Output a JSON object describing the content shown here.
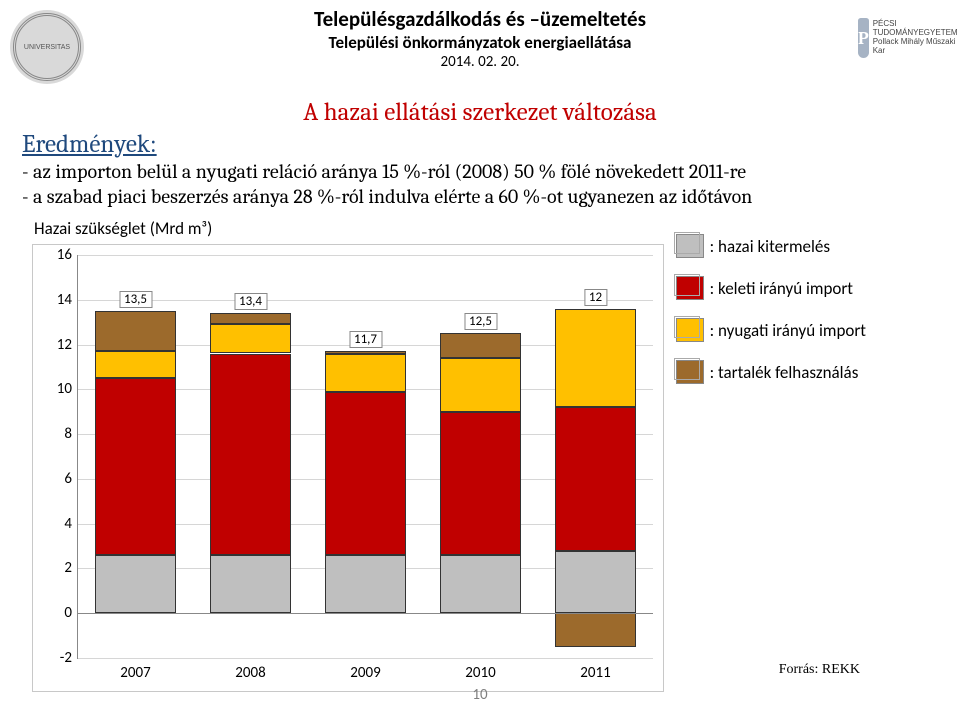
{
  "header": {
    "line1": "Településgazdálkodás és –üzemeltetés",
    "line2": "Települési önkormányzatok energiaellátása",
    "line3": "2014. 02. 20.",
    "logo_left_text": "UNIVERSITAS",
    "logo_right_shield": "P",
    "logo_right_text": "PÉCSI TUDOMÁNYEGYETEM\nPollack Mihály Műszaki Kar"
  },
  "title": "A hazai ellátási szerkezet változása",
  "section_label": "Eredmények:",
  "bullets": {
    "b1": "- az importon belül a nyugati reláció aránya 15 %-ról (2008) 50 % fölé növekedett 2011-re",
    "b2": "- a szabad piaci beszerzés aránya 28 %-ról indulva elérte a 60 %-ot ugyanezen az időtávon"
  },
  "chart_caption": "Hazai szükséglet (Mrd m³)",
  "legend": {
    "items": [
      {
        "color": "#bfbfbf",
        "label": ": hazai kitermelés"
      },
      {
        "color": "#c00000",
        "label": ": keleti irányú import"
      },
      {
        "color": "#ffc000",
        "label": ": nyugati irányú import"
      },
      {
        "color": "#9c6a2c",
        "label": ": tartalék felhasználás"
      }
    ]
  },
  "chart": {
    "type": "stacked-bar",
    "ylim": [
      -2,
      16
    ],
    "ytick_step": 2,
    "years": [
      "2007",
      "2008",
      "2009",
      "2010",
      "2011"
    ],
    "totals": [
      "13,5",
      "13,4",
      "11,7",
      "12,5",
      "12"
    ],
    "colors": {
      "hazai": "#bfbfbf",
      "keleti": "#c00000",
      "nyugati": "#ffc000",
      "tartalek": "#9c6a2c"
    },
    "series": [
      {
        "hazai": 2.6,
        "keleti": 7.9,
        "nyugati": 1.2,
        "tartalek": 1.8,
        "neg_tartalek": 0
      },
      {
        "hazai": 2.6,
        "keleti": 9.0,
        "nyugati": 1.3,
        "tartalek": 0.5,
        "neg_tartalek": 0
      },
      {
        "hazai": 2.6,
        "keleti": 7.3,
        "nyugati": 1.7,
        "tartalek": 0.1,
        "neg_tartalek": 0
      },
      {
        "hazai": 2.6,
        "keleti": 6.4,
        "nyugati": 2.4,
        "tartalek": 1.1,
        "neg_tartalek": 0
      },
      {
        "hazai": 2.8,
        "keleti": 6.4,
        "nyugati": 4.4,
        "tartalek": 0,
        "neg_tartalek": 1.5
      }
    ],
    "bar_width": 0.7,
    "background_color": "#ffffff",
    "grid_color": "#d6d6d6",
    "axis_color": "#888888",
    "label_fontsize": 15
  },
  "source": "Forrás: REKK",
  "slide_number": "10"
}
